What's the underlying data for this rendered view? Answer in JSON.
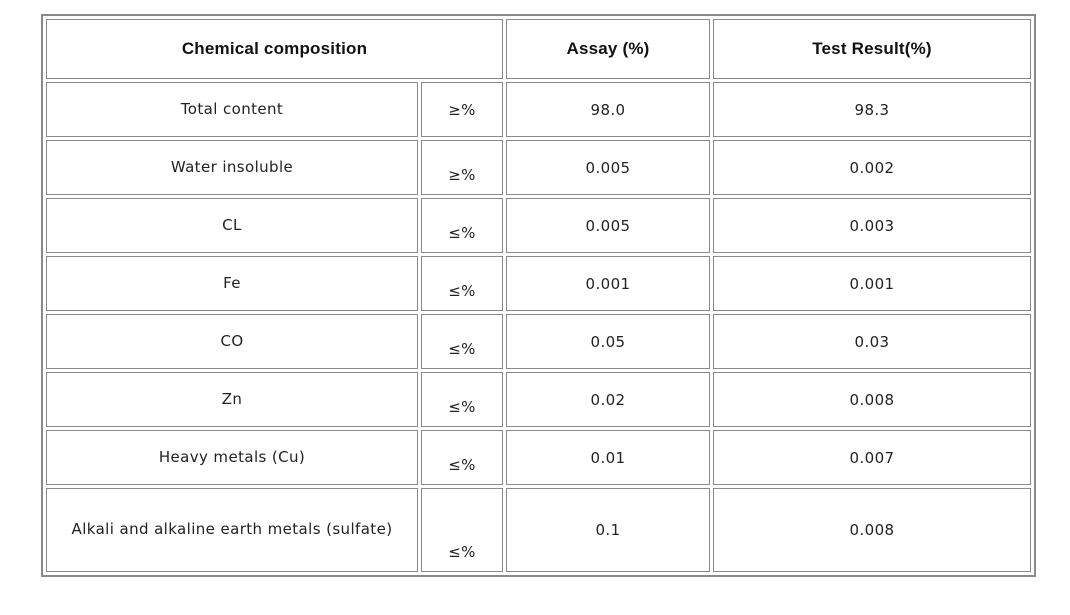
{
  "table": {
    "headers": {
      "chemical_composition": "Chemical composition",
      "assay": "Assay (%)",
      "test_result": "Test Result(%)"
    },
    "rows": [
      {
        "name": "Total content",
        "operator": "≥%",
        "assay": "98.0",
        "result": "98.3"
      },
      {
        "name": "Water insoluble",
        "operator": "≥%",
        "assay": "0.005",
        "result": "0.002"
      },
      {
        "name": "CL",
        "operator": "≤%",
        "assay": "0.005",
        "result": "0.003"
      },
      {
        "name": "Fe",
        "operator": "≤%",
        "assay": "0.001",
        "result": "0.001"
      },
      {
        "name": "CO",
        "operator": "≤%",
        "assay": "0.05",
        "result": "0.03"
      },
      {
        "name": "Zn",
        "operator": "≤%",
        "assay": "0.02",
        "result": "0.008"
      },
      {
        "name": "Heavy metals (Cu)",
        "operator": "≤%",
        "assay": "0.01",
        "result": "0.007"
      },
      {
        "name": "Alkali and alkaline earth metals (sulfate)",
        "operator": "≤%",
        "assay": "0.1",
        "result": "0.008"
      }
    ]
  }
}
